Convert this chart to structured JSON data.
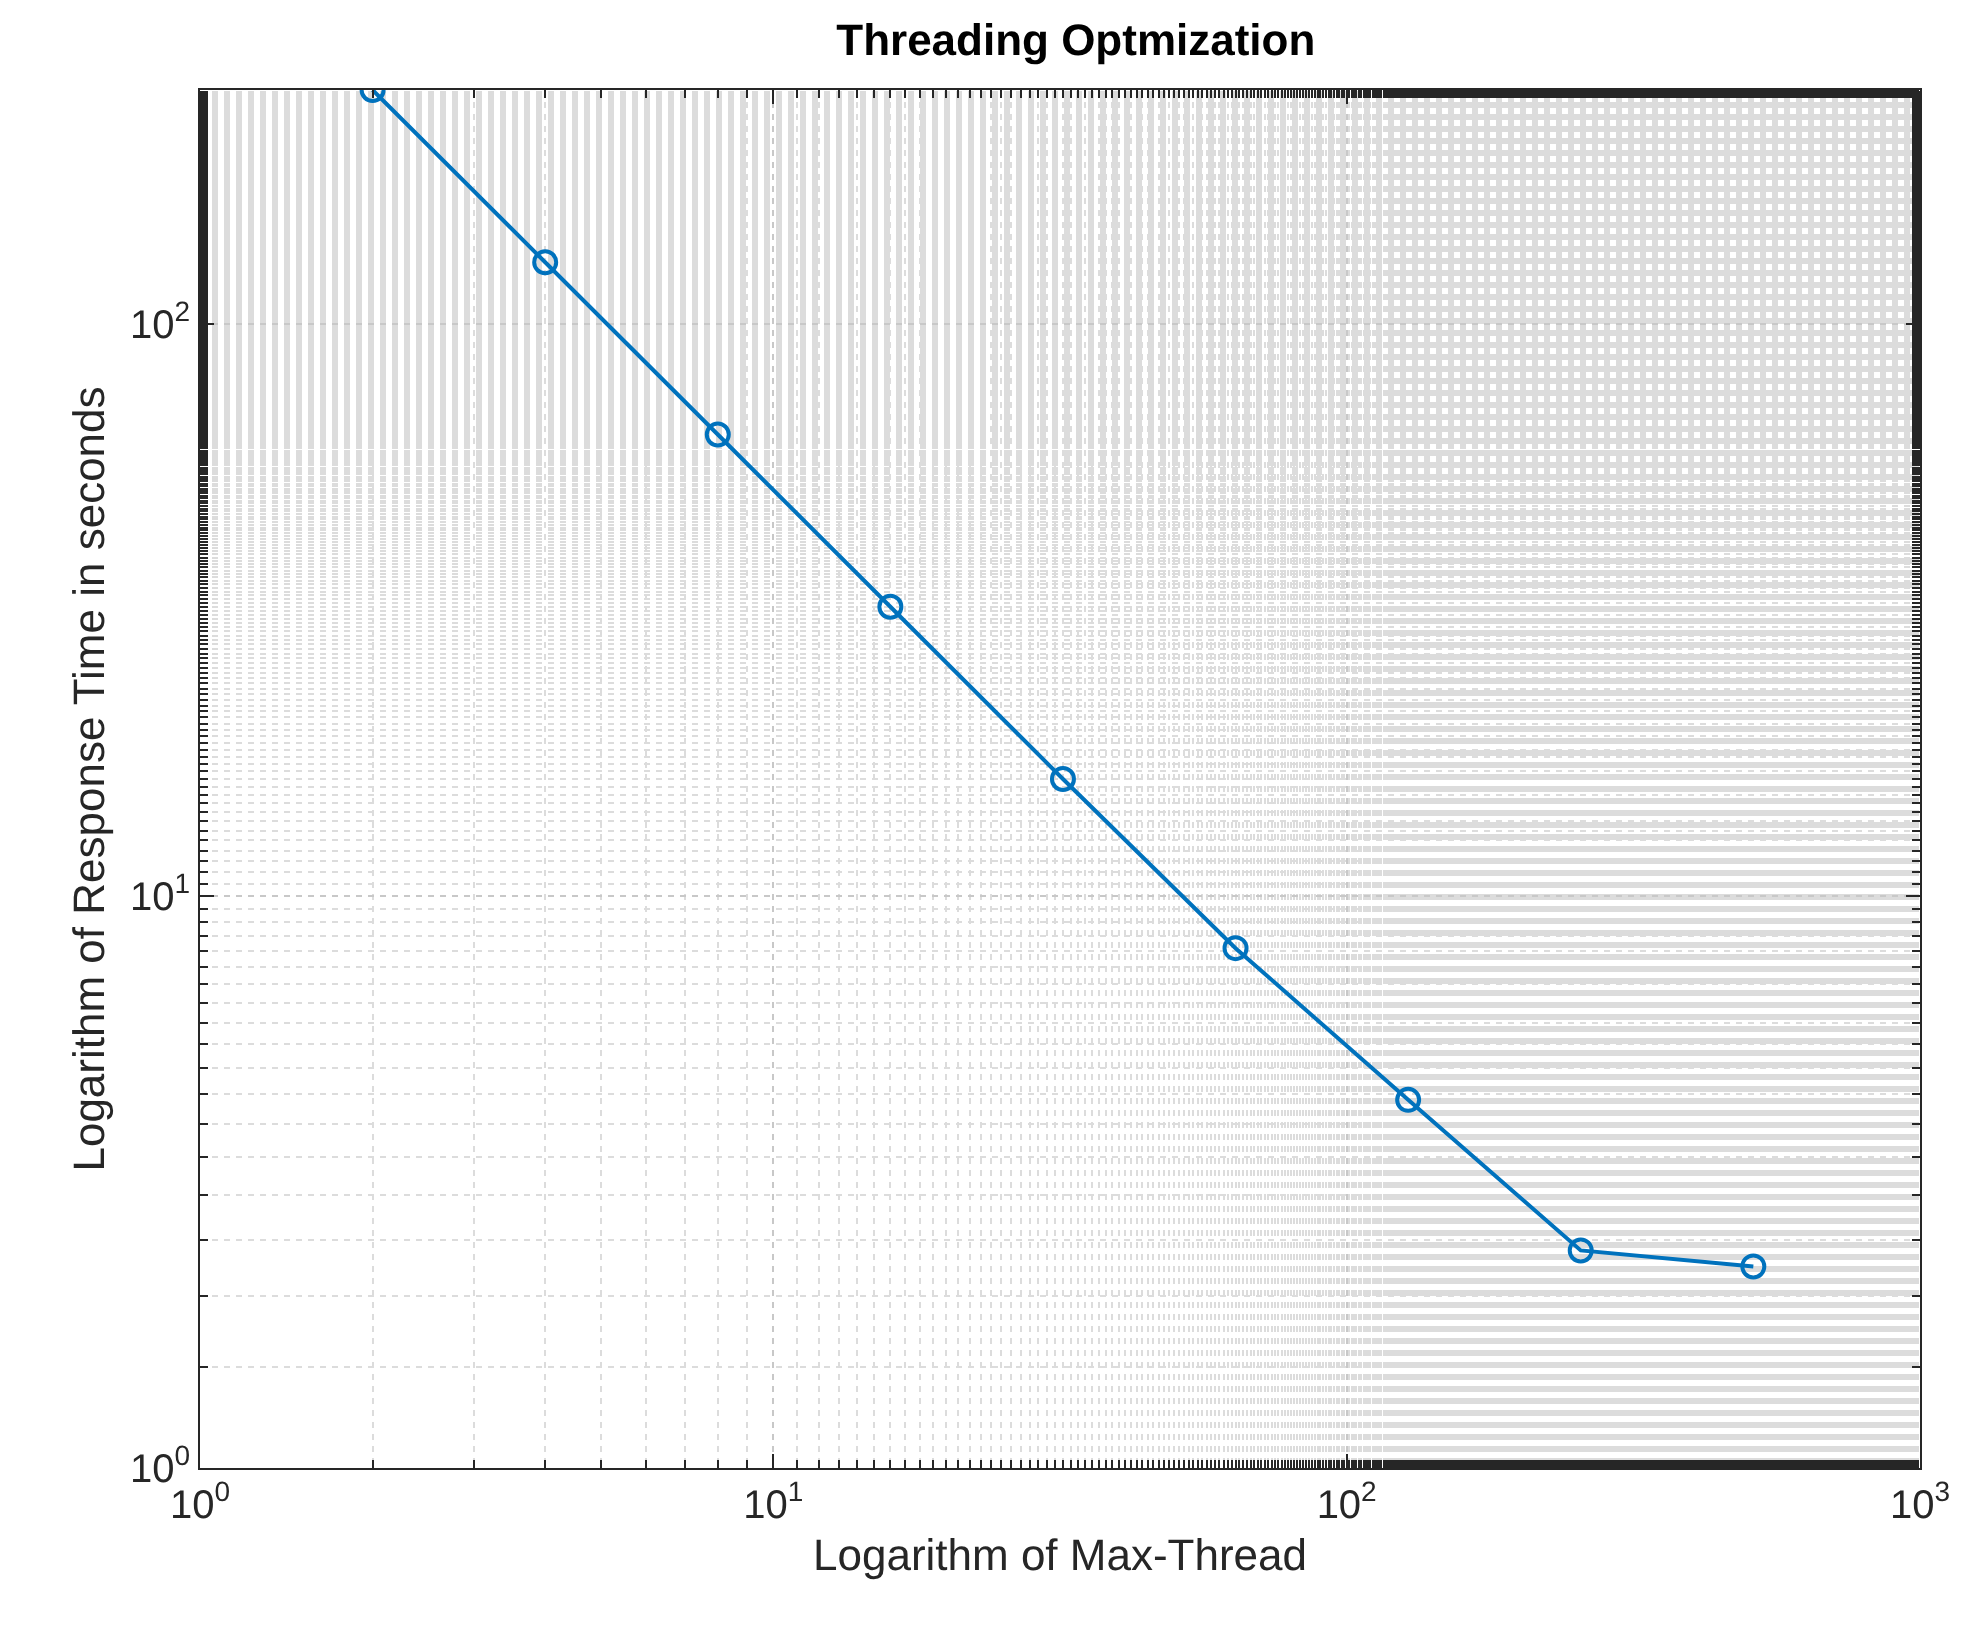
{
  "chart_data": {
    "type": "line",
    "title": "Threading Optmization",
    "xlabel": "Logarithm of Max-Thread",
    "ylabel": "Logarithm of Response Time in seconds",
    "x": [
      2,
      4,
      8,
      16,
      32,
      64,
      128,
      256,
      512
    ],
    "series": [
      {
        "color": "#0072bd",
        "values": [
          256,
          128,
          64,
          32,
          16,
          8.1,
          4.4,
          2.4,
          2.25
        ]
      }
    ],
    "xlim": [
      1,
      1000
    ],
    "ylim": [
      1,
      256
    ],
    "xticks": [
      {
        "value": 1,
        "label": "10$^{0}$"
      },
      {
        "value": 10,
        "label": "10$^{1}$"
      },
      {
        "value": 100,
        "label": "10$^{2}$"
      },
      {
        "value": 1000,
        "label": "10$^{3}$"
      }
    ],
    "yticks": [
      {
        "value": 1,
        "label": "10$^{0}$"
      },
      {
        "value": 10,
        "label": "10$^{1}$"
      },
      {
        "value": 100,
        "label": "10$^{2}$"
      }
    ],
    "log": "xy",
    "grid": true,
    "marker": "circle",
    "line_style": "solid"
  }
}
